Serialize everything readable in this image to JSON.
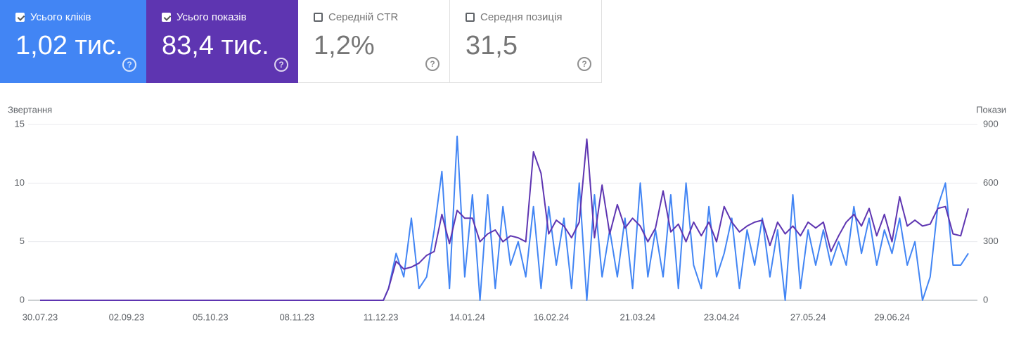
{
  "cards": [
    {
      "label": "Усього кліків",
      "value": "1,02 тис."
    },
    {
      "label": "Усього показів",
      "value": "83,4 тис."
    },
    {
      "label": "Середній CTR",
      "value": "1,2%"
    },
    {
      "label": "Середня позиція",
      "value": "31,5"
    }
  ],
  "chart_data": {
    "type": "line",
    "ylabel": "Звертання",
    "y2label": "Покази",
    "x": [
      "30.07.23",
      "12.12.23",
      "14.12.23",
      "17.12.23",
      "20.12.23",
      "23.12.23",
      "26.12.23",
      "29.12.23",
      "01.01.24",
      "04.01.24",
      "07.01.24",
      "10.01.24",
      "13.01.24",
      "16.01.24",
      "19.01.24",
      "22.01.24",
      "25.01.24",
      "28.01.24",
      "31.01.24",
      "03.02.24",
      "06.02.24",
      "09.02.24",
      "12.02.24",
      "15.02.24",
      "18.02.24",
      "21.02.24",
      "24.02.24",
      "27.02.24",
      "01.03.24",
      "04.03.24",
      "07.03.24",
      "10.03.24",
      "13.03.24",
      "16.03.24",
      "19.03.24",
      "22.03.24",
      "25.03.24",
      "28.03.24",
      "31.03.24",
      "03.04.24",
      "06.04.24",
      "09.04.24",
      "12.04.24",
      "15.04.24",
      "18.04.24",
      "21.04.24",
      "24.04.24",
      "27.04.24",
      "30.04.24",
      "03.05.24",
      "06.05.24",
      "09.05.24",
      "12.05.24",
      "15.05.24",
      "18.05.24",
      "21.05.24",
      "24.05.24",
      "27.05.24",
      "30.05.24",
      "02.06.24",
      "05.06.24",
      "08.06.24",
      "11.06.24",
      "14.06.24",
      "17.06.24",
      "20.06.24",
      "23.06.24",
      "26.06.24",
      "29.06.24",
      "02.07.24",
      "05.07.24",
      "08.07.24",
      "11.07.24",
      "14.07.24",
      "17.07.24",
      "20.07.24",
      "23.07.24",
      "26.07.24",
      "29.07.24"
    ],
    "series": [
      {
        "color": "#4285f4",
        "values": [
          0,
          0,
          1,
          4,
          2,
          7,
          1,
          2,
          6,
          11,
          1,
          14,
          2,
          9,
          0,
          9,
          1,
          8,
          3,
          5,
          2,
          8,
          1,
          8,
          3,
          7,
          1,
          10,
          0,
          9,
          2,
          6,
          2,
          7,
          1,
          10,
          2,
          6,
          2,
          9,
          1,
          10,
          3,
          1,
          8,
          2,
          4,
          7,
          1,
          6,
          3,
          7,
          2,
          6,
          0,
          9,
          1,
          6,
          3,
          6,
          3,
          5,
          3,
          8,
          4,
          7,
          3,
          6,
          4,
          7,
          3,
          5,
          0,
          2,
          8,
          10,
          3,
          3,
          4
        ]
      },
      {
        "color": "#5e35b1",
        "axis": "y2",
        "values": [
          0,
          0,
          60,
          200,
          160,
          170,
          190,
          230,
          250,
          440,
          290,
          460,
          420,
          420,
          300,
          340,
          360,
          300,
          330,
          320,
          300,
          760,
          650,
          340,
          410,
          380,
          320,
          400,
          825,
          320,
          590,
          340,
          490,
          370,
          420,
          380,
          300,
          370,
          560,
          350,
          390,
          300,
          400,
          330,
          400,
          300,
          480,
          400,
          350,
          380,
          400,
          410,
          280,
          400,
          340,
          380,
          330,
          400,
          370,
          400,
          250,
          330,
          400,
          440,
          380,
          470,
          330,
          440,
          300,
          530,
          380,
          410,
          380,
          390,
          470,
          480,
          340,
          330,
          470
        ]
      }
    ],
    "xlim": [
      "30.07.23",
      "29.07.24"
    ],
    "xticks": [
      "30.07.23",
      "02.09.23",
      "05.10.23",
      "08.11.23",
      "11.12.23",
      "14.01.24",
      "16.02.24",
      "21.03.24",
      "23.04.24",
      "27.05.24",
      "29.06.24"
    ],
    "ylim": [
      0,
      15
    ],
    "yticks": [
      0,
      5,
      10,
      15
    ],
    "y2lim": [
      0,
      900
    ],
    "y2ticks": [
      0,
      300,
      600,
      900
    ],
    "grid": true
  }
}
